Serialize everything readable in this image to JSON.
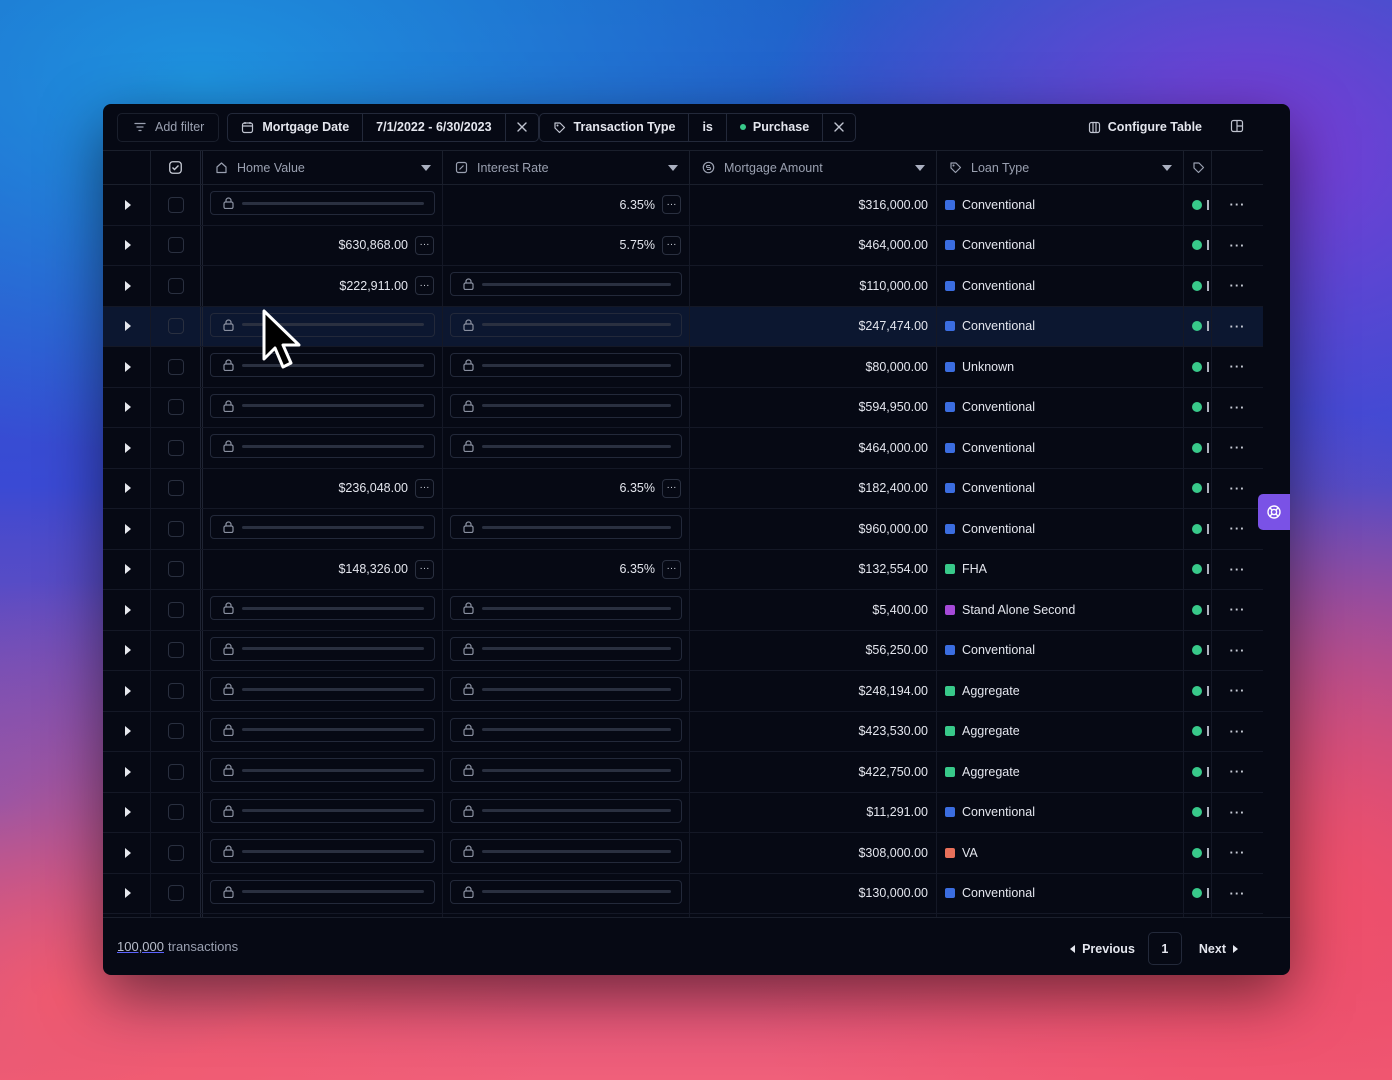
{
  "toolbar": {
    "add_filter": "Add filter",
    "filter1": {
      "field": "Mortgage Date",
      "value": "7/1/2022 - 6/30/2023"
    },
    "filter2": {
      "field": "Transaction Type",
      "op": "is",
      "value": "Purchase",
      "value_dot_color": "#38c98a"
    },
    "configure": "Configure Table"
  },
  "columns": {
    "home_value": "Home Value",
    "interest_rate": "Interest Rate",
    "mortgage_amount": "Mortgage Amount",
    "loan_type": "Loan Type"
  },
  "loan_colors": {
    "Conventional": "#3b6de0",
    "Unknown": "#3b6de0",
    "FHA": "#38c98a",
    "Stand Alone Second": "#a64ad8",
    "Aggregate": "#38c98a",
    "VA": "#e8705a"
  },
  "rows": [
    {
      "home": null,
      "rate": "6.35%",
      "amount": "$316,000.00",
      "loan": "Conventional"
    },
    {
      "home": "$630,868.00",
      "rate": "5.75%",
      "amount": "$464,000.00",
      "loan": "Conventional"
    },
    {
      "home": "$222,911.00",
      "rate": null,
      "amount": "$110,000.00",
      "loan": "Conventional"
    },
    {
      "home": null,
      "rate": null,
      "amount": "$247,474.00",
      "loan": "Conventional",
      "highlight": true
    },
    {
      "home": null,
      "rate": null,
      "amount": "$80,000.00",
      "loan": "Unknown"
    },
    {
      "home": null,
      "rate": null,
      "amount": "$594,950.00",
      "loan": "Conventional"
    },
    {
      "home": null,
      "rate": null,
      "amount": "$464,000.00",
      "loan": "Conventional"
    },
    {
      "home": "$236,048.00",
      "rate": "6.35%",
      "amount": "$182,400.00",
      "loan": "Conventional"
    },
    {
      "home": null,
      "rate": null,
      "amount": "$960,000.00",
      "loan": "Conventional"
    },
    {
      "home": "$148,326.00",
      "rate": "6.35%",
      "amount": "$132,554.00",
      "loan": "FHA"
    },
    {
      "home": null,
      "rate": null,
      "amount": "$5,400.00",
      "loan": "Stand Alone Second"
    },
    {
      "home": null,
      "rate": null,
      "amount": "$56,250.00",
      "loan": "Conventional"
    },
    {
      "home": null,
      "rate": null,
      "amount": "$248,194.00",
      "loan": "Aggregate"
    },
    {
      "home": null,
      "rate": null,
      "amount": "$423,530.00",
      "loan": "Aggregate"
    },
    {
      "home": null,
      "rate": null,
      "amount": "$422,750.00",
      "loan": "Aggregate"
    },
    {
      "home": null,
      "rate": null,
      "amount": "$11,291.00",
      "loan": "Conventional"
    },
    {
      "home": null,
      "rate": null,
      "amount": "$308,000.00",
      "loan": "VA"
    },
    {
      "home": null,
      "rate": null,
      "amount": "$130,000.00",
      "loan": "Conventional"
    },
    {
      "home": null,
      "rate": null,
      "amount": "",
      "loan": ""
    }
  ],
  "footer": {
    "count": "100,000",
    "suffix": "transactions",
    "previous": "Previous",
    "page": "1",
    "next": "Next"
  }
}
